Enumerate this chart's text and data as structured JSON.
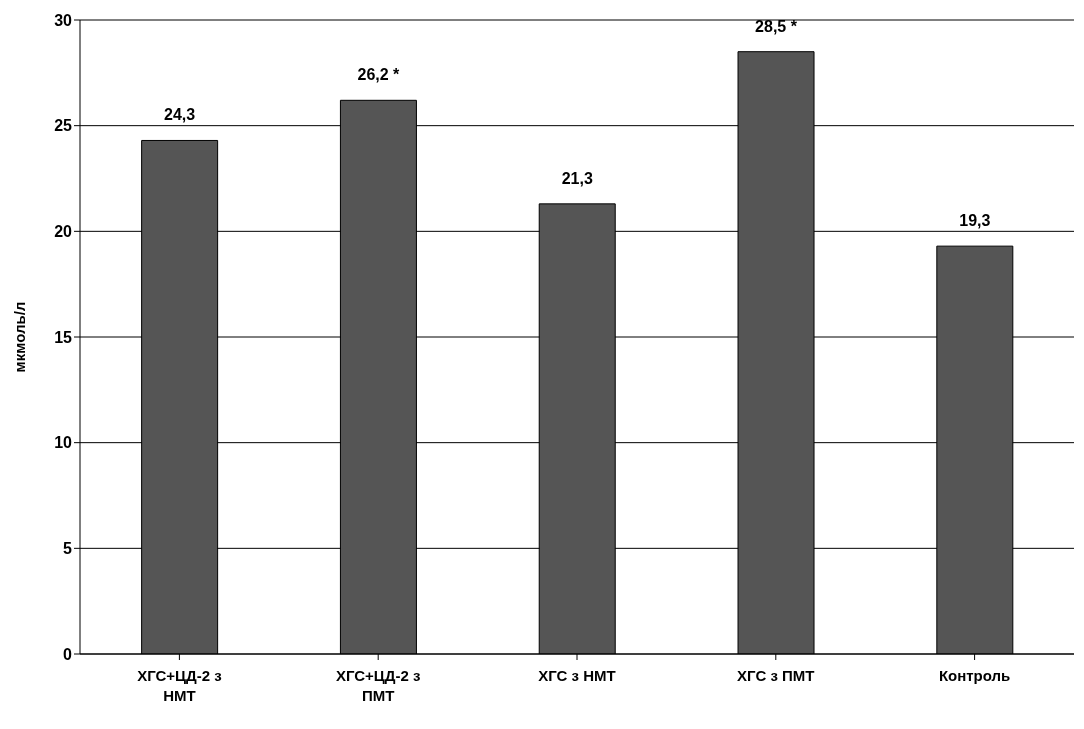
{
  "chart_data": {
    "type": "bar",
    "ylabel": "мкмоль/л",
    "categories": [
      "ХГС+ЦД-2 з НМТ",
      "ХГС+ЦД-2 з ПМТ",
      "ХГС з НМТ",
      "ХГС з ПМТ",
      "Контроль"
    ],
    "values": [
      24.3,
      26.2,
      21.3,
      28.5,
      19.3
    ],
    "value_labels": [
      "24,3",
      "26,2 *",
      "21,3",
      "28,5 *",
      "19,3"
    ],
    "color": "#555555",
    "ylim": [
      0,
      30
    ],
    "yticks": [
      0,
      5,
      10,
      15,
      20,
      25,
      30
    ],
    "grid": "y"
  }
}
